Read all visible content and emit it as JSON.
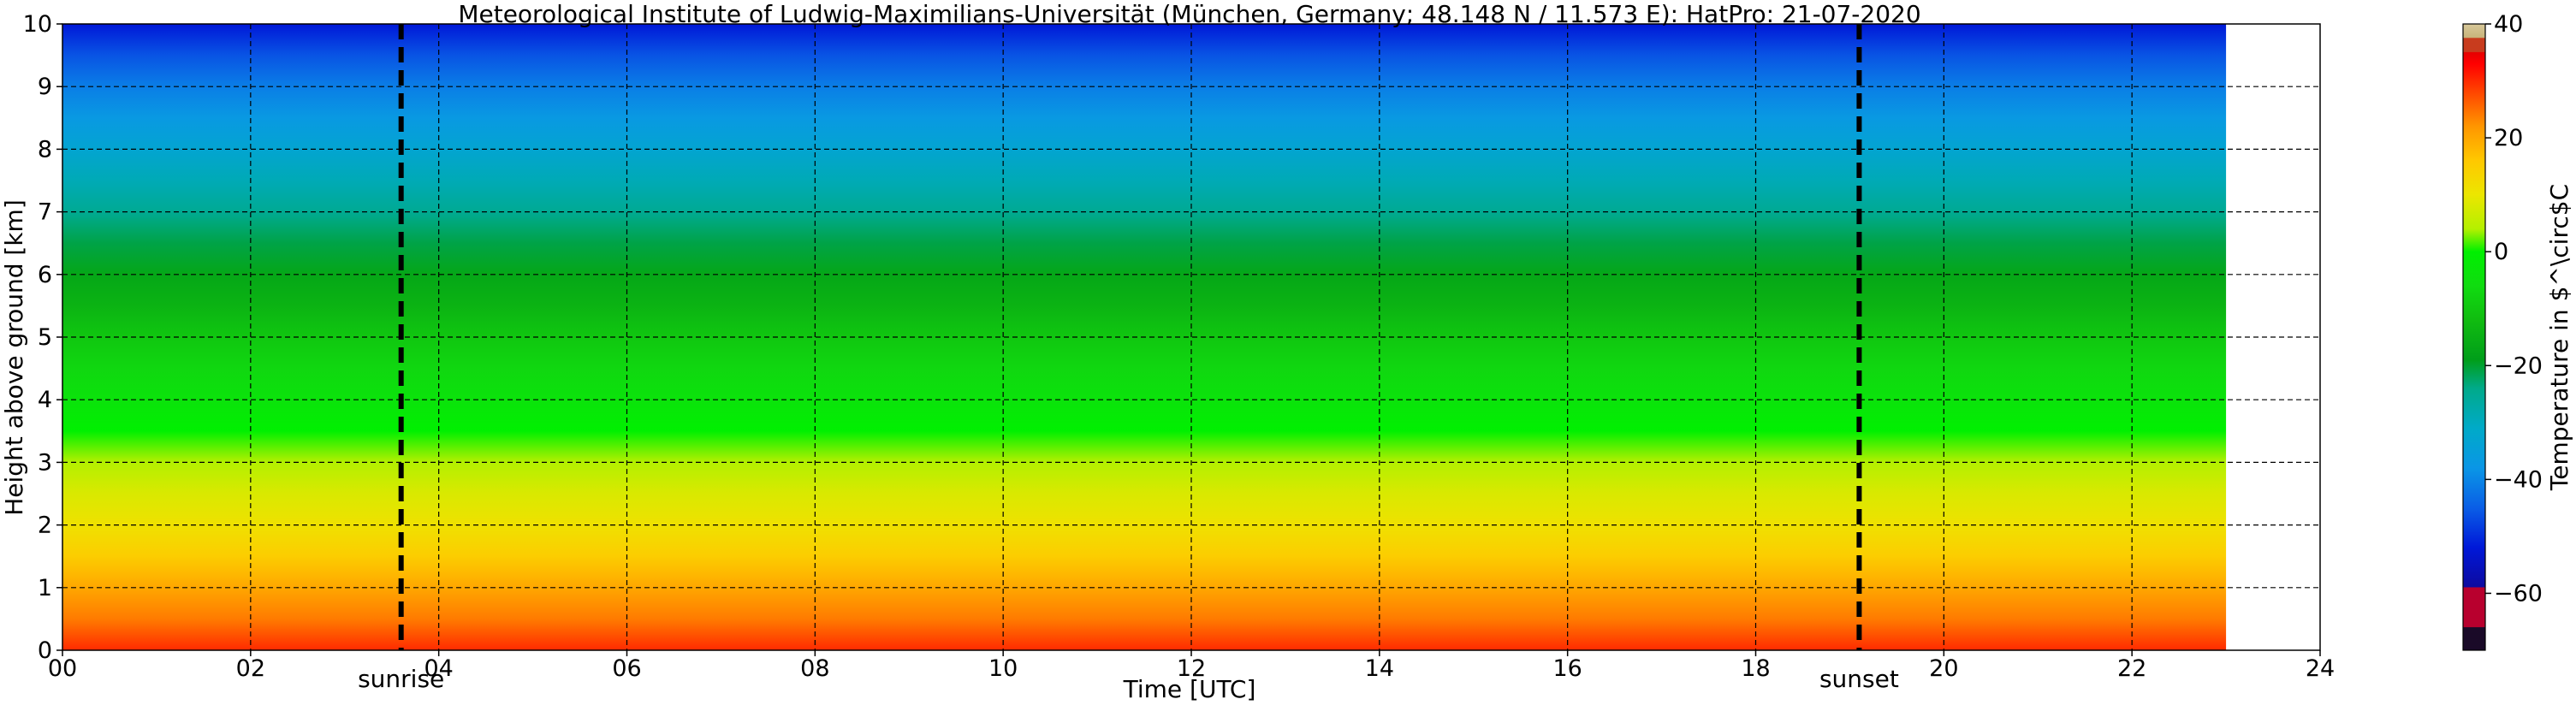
{
  "chart_data": {
    "type": "heatmap",
    "title": "Meteorological Institute of Ludwig-Maximilians-Universität (München, Germany; 48.148 N / 11.573 E):    HatPro: 21-07-2020",
    "xlabel": "Time [UTC]",
    "ylabel": "Height above ground [km]",
    "xlim": [
      0,
      24
    ],
    "ylim": [
      0,
      10
    ],
    "x_ticks": [
      {
        "value": 0,
        "label": "00"
      },
      {
        "value": 2,
        "label": "02"
      },
      {
        "value": 4,
        "label": "04"
      },
      {
        "value": 6,
        "label": "06"
      },
      {
        "value": 8,
        "label": "08"
      },
      {
        "value": 10,
        "label": "10"
      },
      {
        "value": 12,
        "label": "12"
      },
      {
        "value": 14,
        "label": "14"
      },
      {
        "value": 16,
        "label": "16"
      },
      {
        "value": 18,
        "label": "18"
      },
      {
        "value": 20,
        "label": "20"
      },
      {
        "value": 22,
        "label": "22"
      },
      {
        "value": 24,
        "label": "24"
      }
    ],
    "y_ticks": [
      {
        "value": 0,
        "label": "0"
      },
      {
        "value": 1,
        "label": "1"
      },
      {
        "value": 2,
        "label": "2"
      },
      {
        "value": 3,
        "label": "3"
      },
      {
        "value": 4,
        "label": "4"
      },
      {
        "value": 5,
        "label": "5"
      },
      {
        "value": 6,
        "label": "6"
      },
      {
        "value": 7,
        "label": "7"
      },
      {
        "value": 8,
        "label": "8"
      },
      {
        "value": 9,
        "label": "9"
      },
      {
        "value": 10,
        "label": "10"
      }
    ],
    "grid": true,
    "data_end_time": 23,
    "temperature_profile": [
      {
        "height": 0.0,
        "temp": 30
      },
      {
        "height": 0.25,
        "temp": 27
      },
      {
        "height": 0.5,
        "temp": 24
      },
      {
        "height": 1.0,
        "temp": 20
      },
      {
        "height": 1.5,
        "temp": 15
      },
      {
        "height": 2.0,
        "temp": 11
      },
      {
        "height": 2.5,
        "temp": 8
      },
      {
        "height": 3.0,
        "temp": 4
      },
      {
        "height": 3.5,
        "temp": 0
      },
      {
        "height": 4.0,
        "temp": -4
      },
      {
        "height": 4.5,
        "temp": -7
      },
      {
        "height": 5.0,
        "temp": -10
      },
      {
        "height": 5.5,
        "temp": -14
      },
      {
        "height": 6.0,
        "temp": -17
      },
      {
        "height": 6.5,
        "temp": -21
      },
      {
        "height": 7.0,
        "temp": -25
      },
      {
        "height": 7.5,
        "temp": -29
      },
      {
        "height": 8.0,
        "temp": -33
      },
      {
        "height": 8.5,
        "temp": -37
      },
      {
        "height": 9.0,
        "temp": -41
      },
      {
        "height": 9.5,
        "temp": -46
      },
      {
        "height": 10.0,
        "temp": -52
      }
    ],
    "annotations": [
      {
        "name": "sunrise",
        "label": "sunrise",
        "time": 3.6
      },
      {
        "name": "sunset",
        "label": "sunset",
        "time": 19.1
      }
    ],
    "colorbar": {
      "label": "Temperature in $^\\circ$C",
      "min": -70,
      "max": 40,
      "ticks": [
        {
          "value": 40,
          "label": "40"
        },
        {
          "value": 20,
          "label": "20"
        },
        {
          "value": 0,
          "label": "0"
        },
        {
          "value": -20,
          "label": "−20"
        },
        {
          "value": -40,
          "label": "−40"
        },
        {
          "value": -60,
          "label": "−60"
        }
      ],
      "stops": [
        {
          "value": -70,
          "color": "#1a0a28"
        },
        {
          "value": -66,
          "color": "#1a0a28"
        },
        {
          "value": -65.9,
          "color": "#b8002e"
        },
        {
          "value": -59,
          "color": "#b8002e"
        },
        {
          "value": -58.9,
          "color": "#0d0aa0"
        },
        {
          "value": -52,
          "color": "#0018d8"
        },
        {
          "value": -45,
          "color": "#0a5ee6"
        },
        {
          "value": -38,
          "color": "#0a96e6"
        },
        {
          "value": -31,
          "color": "#00aac8"
        },
        {
          "value": -24,
          "color": "#00aa8a"
        },
        {
          "value": -19,
          "color": "#009e1a"
        },
        {
          "value": -12,
          "color": "#10bc10"
        },
        {
          "value": -6,
          "color": "#10dc10"
        },
        {
          "value": 0,
          "color": "#00f000"
        },
        {
          "value": 4,
          "color": "#b4f000"
        },
        {
          "value": 10,
          "color": "#ece600"
        },
        {
          "value": 16,
          "color": "#ffc800"
        },
        {
          "value": 22,
          "color": "#ff9600"
        },
        {
          "value": 28,
          "color": "#ff4600"
        },
        {
          "value": 33,
          "color": "#ff0000"
        },
        {
          "value": 35,
          "color": "#e60000"
        },
        {
          "value": 35.1,
          "color": "#c83c1e"
        },
        {
          "value": 37.5,
          "color": "#c83c1e"
        },
        {
          "value": 37.6,
          "color": "#c8b47a"
        },
        {
          "value": 40,
          "color": "#d8c89a"
        }
      ]
    }
  }
}
